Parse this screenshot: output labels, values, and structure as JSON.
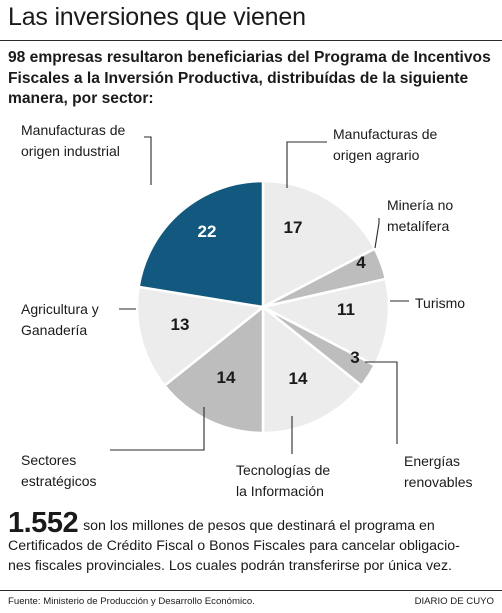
{
  "header": {
    "title": "Las inversiones que vienen",
    "subtitle_lines": [
      "98 empresas resultaron beneficiarias del Programa de Incentivos",
      "Fiscales a la Inversión Productiva, distribuídas de la siguiente",
      "manera, por sector:"
    ]
  },
  "chart_data": {
    "type": "pie",
    "title": "",
    "slices": [
      {
        "label": [
          "Manufacturas de",
          "origen agrario"
        ],
        "value": 17,
        "color": "#ececec"
      },
      {
        "label": [
          "Minería no",
          "metalífera"
        ],
        "value": 4,
        "color": "#bdbdbd"
      },
      {
        "label": [
          "Turismo"
        ],
        "value": 11,
        "color": "#ececec"
      },
      {
        "label": [
          "Energías",
          "renovables"
        ],
        "value": 3,
        "color": "#bdbdbd"
      },
      {
        "label": [
          "Tecnologías de",
          "la Información"
        ],
        "value": 14,
        "color": "#ececec"
      },
      {
        "label": [
          "Sectores",
          "estratégicos"
        ],
        "value": 14,
        "color": "#bdbdbd"
      },
      {
        "label": [
          "Agricultura y",
          "Ganadería"
        ],
        "value": 13,
        "color": "#ececec"
      },
      {
        "label": [
          "Manufacturas de",
          "origen industrial"
        ],
        "value": 22,
        "color": "#13587e"
      }
    ]
  },
  "highlight": {
    "number": "1.552",
    "lines": [
      "son los millones de pesos que destinará el programa en",
      "Certificados de Crédito Fiscal o Bonos Fiscales para cancelar obligacio-",
      "nes fiscales provinciales. Los cuales podrán transferirse por única vez."
    ]
  },
  "footer": {
    "source": "Fuente: Ministerio de Producción y Desarrollo Económico.",
    "brand": "DIARIO DE CUYO"
  }
}
